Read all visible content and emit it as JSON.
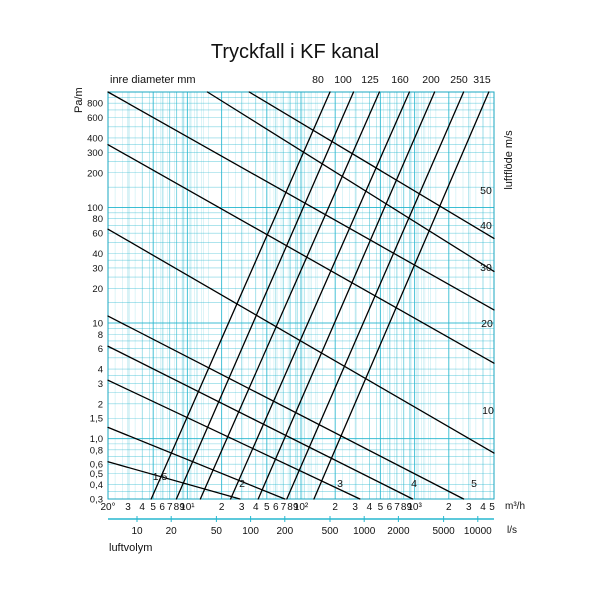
{
  "chart_data": {
    "type": "line",
    "title": "Tryckfall i KF kanal",
    "y_axis_label": "Pa/m",
    "diameter_axis_label": "inre diameter mm",
    "velocity_axis_label": "luftflöde m/s",
    "x_axis_label": "luftvolym",
    "x_unit_m3h": "m³/h",
    "x_unit_ls": "l/s",
    "y_scale": "log",
    "x_scale": "log",
    "grid": true,
    "grid_color": "#27b7cf",
    "line_color": "#000000",
    "ylim": [
      0.3,
      1000
    ],
    "xlim_m3h": [
      20,
      50000
    ],
    "y_ticks": [
      "0,3",
      "0,4",
      "0,5",
      "0,6",
      "0,8",
      "1,0",
      "1,5",
      "2",
      "3",
      "4",
      "6",
      "8",
      "10",
      "20",
      "30",
      "40",
      "60",
      "80",
      "100",
      "200",
      "300",
      "400",
      "600",
      "800"
    ],
    "x_ticks_m3h": [
      "20°",
      "3",
      "4",
      "5",
      "6",
      "7",
      "8",
      "9",
      "10¹",
      "2",
      "3",
      "4",
      "5",
      "6",
      "7",
      "8",
      "9",
      "10²",
      "2",
      "3",
      "4",
      "5",
      "6",
      "7",
      "8",
      "9",
      "10³",
      "2",
      "3",
      "4",
      "5"
    ],
    "x_ticks_ls": [
      "10",
      "20",
      "50",
      "100",
      "200",
      "500",
      "1000",
      "2000",
      "5000",
      "10000"
    ],
    "diameter_series": [
      {
        "name": "80",
        "points": [
          [
            48,
            0.3
          ],
          [
            1800,
            1000
          ]
        ]
      },
      {
        "name": "100",
        "points": [
          [
            80,
            0.3
          ],
          [
            2900,
            1000
          ]
        ]
      },
      {
        "name": "125",
        "points": [
          [
            130,
            0.3
          ],
          [
            4900,
            1000
          ]
        ]
      },
      {
        "name": "160",
        "points": [
          [
            240,
            0.3
          ],
          [
            9000,
            1000
          ]
        ]
      },
      {
        "name": "200",
        "points": [
          [
            420,
            0.3
          ],
          [
            15000,
            1000
          ]
        ]
      },
      {
        "name": "250",
        "points": [
          [
            750,
            0.3
          ],
          [
            27000,
            1000
          ]
        ]
      },
      {
        "name": "315",
        "points": [
          [
            1300,
            0.3
          ],
          [
            45000,
            1000
          ]
        ]
      }
    ],
    "velocity_series": [
      {
        "name": "1,5",
        "points": [
          [
            20,
            0.63
          ],
          [
            290,
            0.3
          ]
        ]
      },
      {
        "name": "2",
        "points": [
          [
            20,
            1.25
          ],
          [
            720,
            0.3
          ]
        ]
      },
      {
        "name": "3",
        "points": [
          [
            20,
            3.2
          ],
          [
            3300,
            0.3
          ]
        ]
      },
      {
        "name": "4",
        "points": [
          [
            20,
            6.3
          ],
          [
            9600,
            0.3
          ]
        ]
      },
      {
        "name": "5",
        "points": [
          [
            20,
            11.5
          ],
          [
            27000,
            0.3
          ]
        ]
      },
      {
        "name": "10",
        "points": [
          [
            20,
            65
          ],
          [
            50000,
            0.75
          ]
        ]
      },
      {
        "name": "20",
        "points": [
          [
            20,
            350
          ],
          [
            50000,
            4.5
          ]
        ]
      },
      {
        "name": "30",
        "points": [
          [
            20,
            1000
          ],
          [
            50000,
            13
          ]
        ]
      },
      {
        "name": "40",
        "points": [
          [
            150,
            1000
          ],
          [
            50000,
            28
          ]
        ]
      },
      {
        "name": "50",
        "points": [
          [
            350,
            1000
          ],
          [
            50000,
            54
          ]
        ]
      }
    ]
  }
}
